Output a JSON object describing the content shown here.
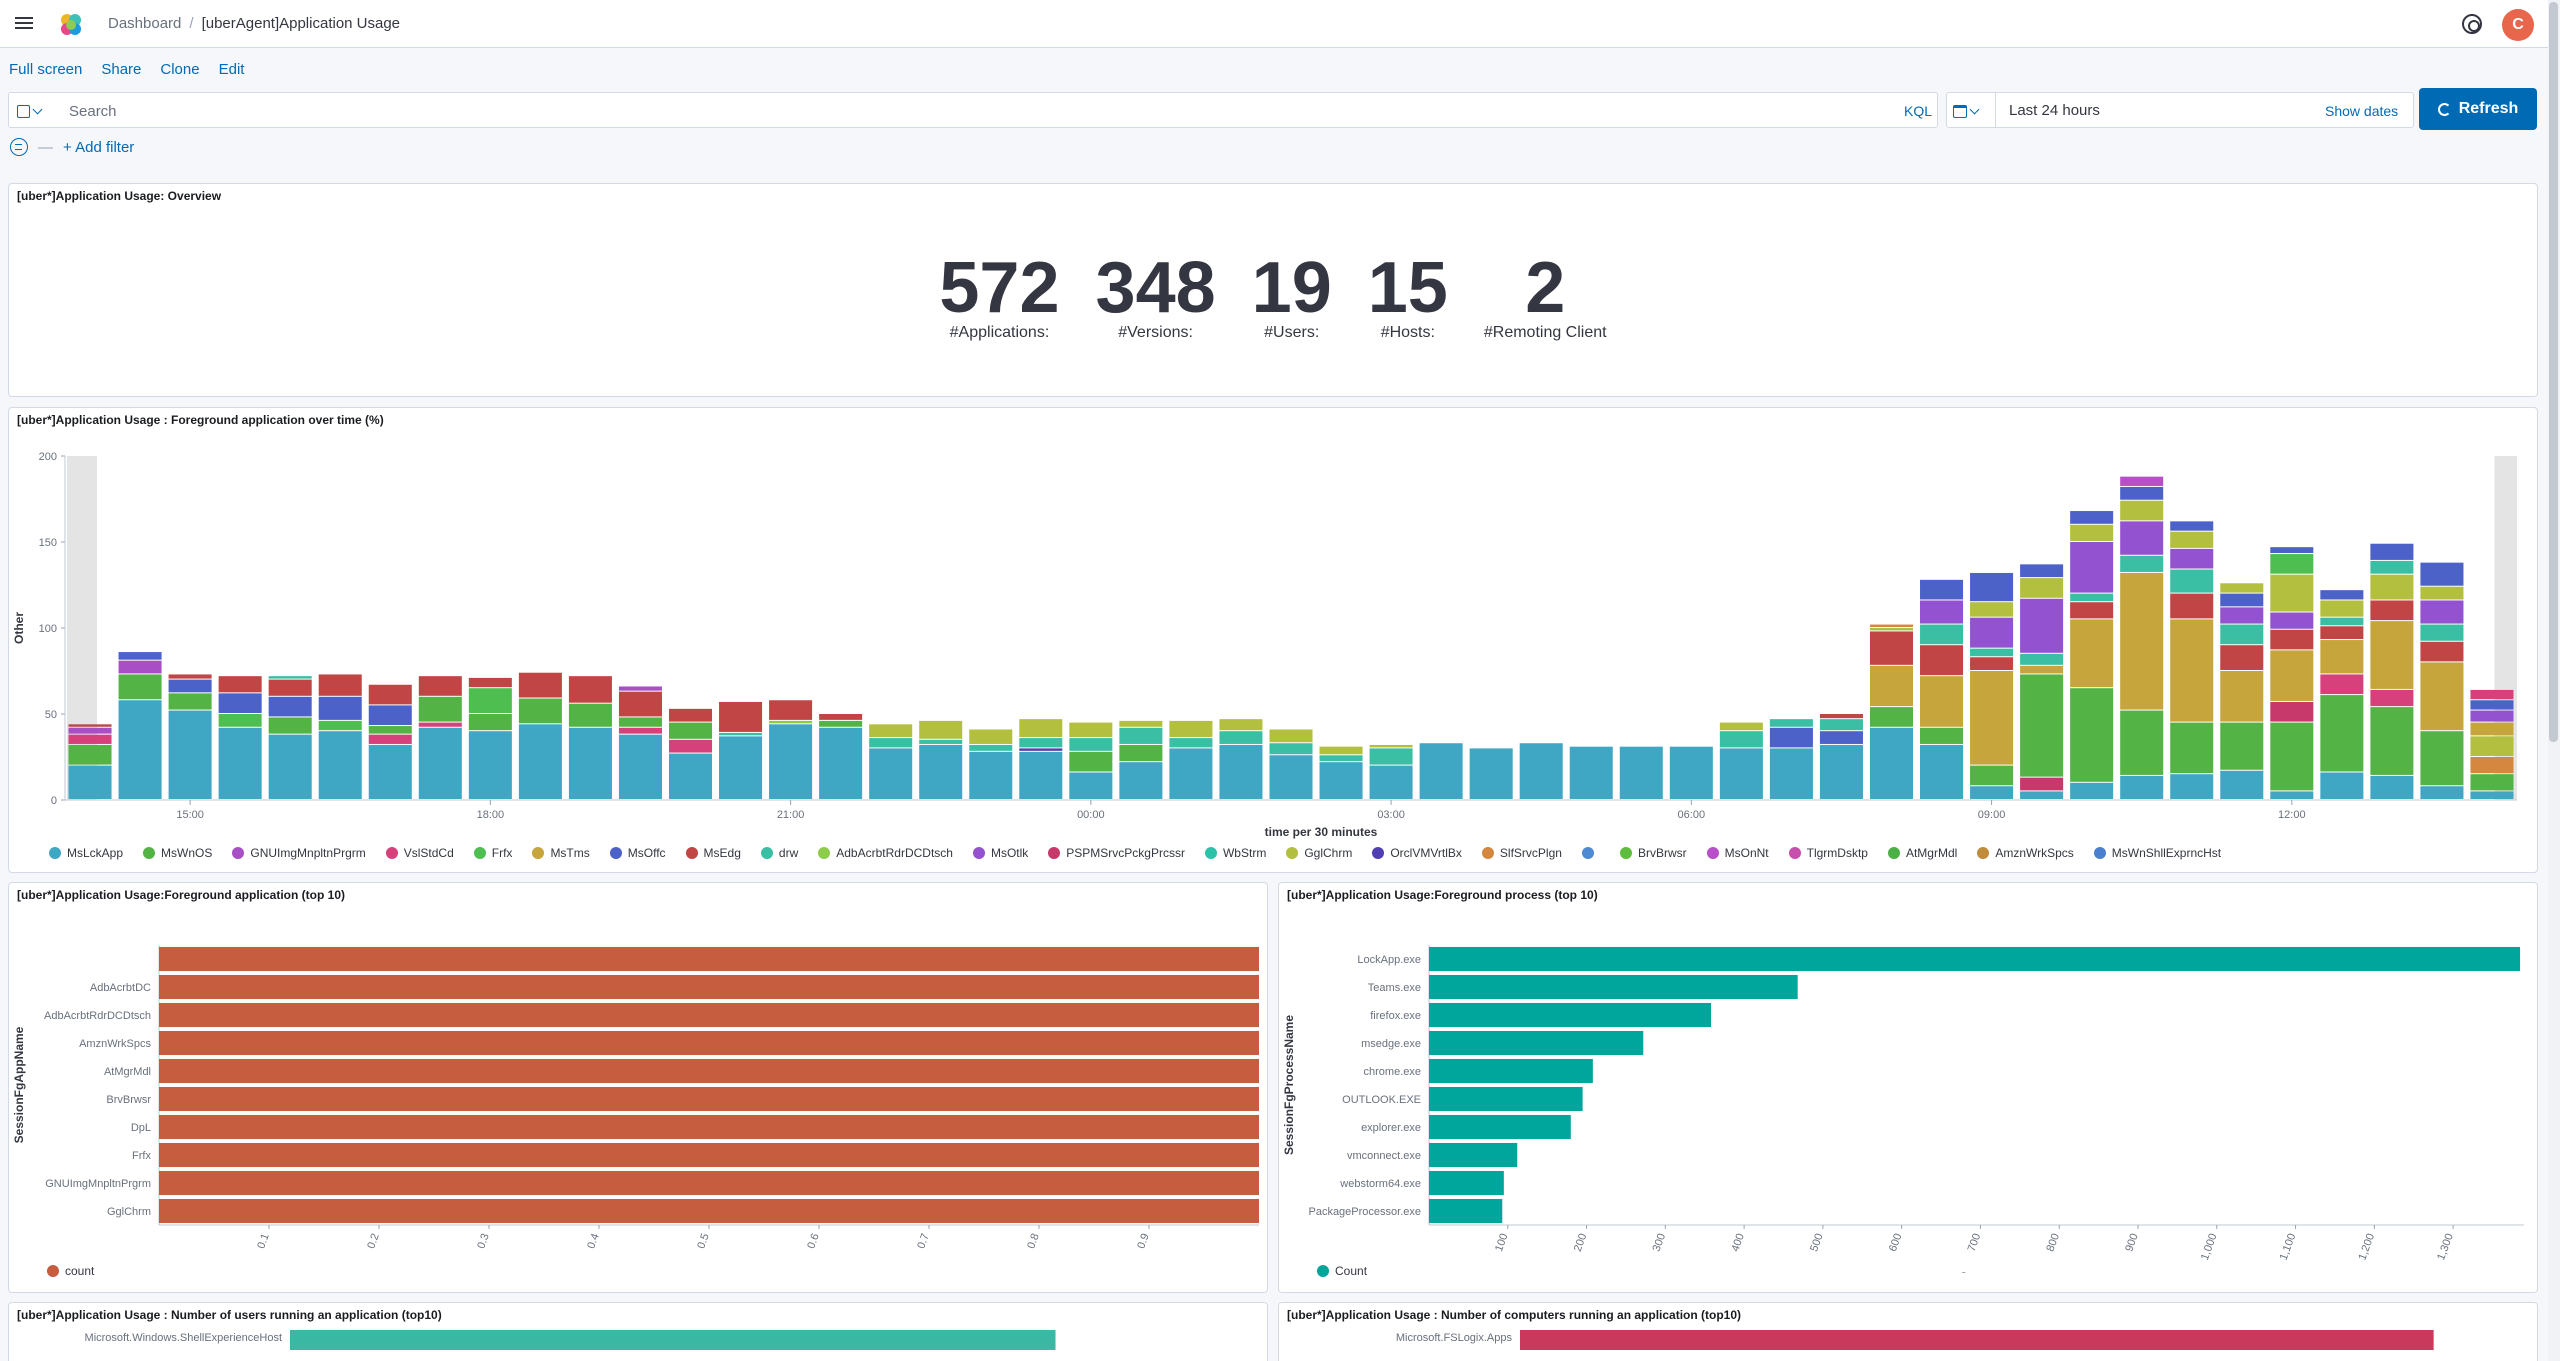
{
  "header": {
    "breadcrumb_root": "Dashboard",
    "breadcrumb_current": "[uberAgent]Application Usage",
    "avatar_initial": "C"
  },
  "actions": {
    "full_screen": "Full screen",
    "share": "Share",
    "clone": "Clone",
    "edit": "Edit"
  },
  "query": {
    "placeholder": "Search",
    "language": "KQL",
    "time_range": "Last 24 hours",
    "show_dates": "Show dates",
    "refresh": "Refresh"
  },
  "filters": {
    "add_filter": "+ Add filter"
  },
  "overview": {
    "title": "[uber*]Application Usage: Overview",
    "metrics": [
      {
        "value": "572",
        "label": "#Applications:"
      },
      {
        "value": "348",
        "label": "#Versions:"
      },
      {
        "value": "19",
        "label": "#Users:"
      },
      {
        "value": "15",
        "label": "#Hosts:"
      },
      {
        "value": "2",
        "label": "#Remoting Client"
      }
    ]
  },
  "colors": {
    "MsLckApp": "#3fa6c4",
    "MsWnOS": "#54b345",
    "GNUImgMnpltnPrgrm": "#a94fc5",
    "VslStdCd": "#d6417b",
    "Frfx": "#4fbe50",
    "MsTms": "#c5a53c",
    "MsOffc": "#4c62c9",
    "MsEdg": "#c24545",
    "drw": "#3bbfa4",
    "AdbAcrbtRdrDCDtsch": "#8ccc4a",
    "MsOtlk": "#9352d0",
    "PSPMSrvcPckgPrcssr": "#c6396a",
    "WbStrm": "#2cc1a9",
    "GglChrm": "#b3bf3f",
    "OrclVMVrtlBx": "#4f3fb3",
    "SlfSrvcPlgn": "#d58740",
    "Blank": "#4d8ad2",
    "BrvBrwsr": "#5ebd3c",
    "MsOnNt": "#b74fc8",
    "TlgrmDsktp": "#c94fae",
    "AtMgrMdl": "#4aaf44",
    "AmznWrkSpcs": "#c08b3a",
    "MsWnShllExprncHst": "#4a7fcf",
    "app_bar": "#c65d3f",
    "process_bar": "#00a69b",
    "users_bar": "#3bb8a4",
    "computers_bar": "#c9395b"
  },
  "chart_data": [
    {
      "type": "bar",
      "stacked": true,
      "title": "[uber*]Application Usage : Foreground application over time (%)",
      "xlabel": "time per 30 minutes",
      "ylabel": "Other",
      "ylim": [
        0,
        200
      ],
      "y_ticks": [
        0,
        50,
        100,
        150,
        200
      ],
      "x_tick_labels": [
        "15:00",
        "18:00",
        "21:00",
        "00:00",
        "03:00",
        "06:00",
        "09:00",
        "12:00"
      ],
      "x_tick_slots": [
        2,
        8,
        14,
        20,
        26,
        32,
        38,
        44
      ],
      "legend_position": "bottom",
      "legend": [
        "MsLckApp",
        "MsWnOS",
        "GNUImgMnpltnPrgrm",
        "VslStdCd",
        "Frfx",
        "MsTms",
        "MsOffc",
        "MsEdg",
        "drw",
        "AdbAcrbtRdrDCDtsch",
        "MsOtlk",
        "PSPMSrvcPckgPrcssr",
        "WbStrm",
        "GglChrm",
        "OrclVMVrtlBx",
        "SlfSrvcPlgn",
        "",
        "BrvBrwsr",
        "MsOnNt",
        "TlgrmDsktp",
        "AtMgrMdl",
        "AmznWrkSpcs",
        "MsWnShllExprncHst"
      ],
      "stacks": [
        [
          [
            "MsLckApp",
            20
          ],
          [
            "MsWnOS",
            12
          ],
          [
            "VslStdCd",
            6
          ],
          [
            "GNUImgMnpltnPrgrm",
            4
          ],
          [
            "MsEdg",
            2
          ]
        ],
        [
          [
            "MsLckApp",
            58
          ],
          [
            "MsWnOS",
            15
          ],
          [
            "GNUImgMnpltnPrgrm",
            8
          ],
          [
            "MsOffc",
            5
          ]
        ],
        [
          [
            "MsLckApp",
            52
          ],
          [
            "MsWnOS",
            10
          ],
          [
            "MsOffc",
            8
          ],
          [
            "MsEdg",
            3
          ]
        ],
        [
          [
            "MsLckApp",
            42
          ],
          [
            "Frfx",
            8
          ],
          [
            "MsOffc",
            12
          ],
          [
            "MsEdg",
            10
          ]
        ],
        [
          [
            "MsLckApp",
            38
          ],
          [
            "MsWnOS",
            10
          ],
          [
            "MsOffc",
            12
          ],
          [
            "MsEdg",
            10
          ],
          [
            "drw",
            2
          ]
        ],
        [
          [
            "MsLckApp",
            40
          ],
          [
            "Frfx",
            6
          ],
          [
            "MsOffc",
            14
          ],
          [
            "MsEdg",
            13
          ]
        ],
        [
          [
            "MsLckApp",
            32
          ],
          [
            "VslStdCd",
            6
          ],
          [
            "MsWnOS",
            5
          ],
          [
            "MsOffc",
            12
          ],
          [
            "MsEdg",
            12
          ]
        ],
        [
          [
            "MsLckApp",
            42
          ],
          [
            "VslStdCd",
            3
          ],
          [
            "MsWnOS",
            15
          ],
          [
            "MsEdg",
            12
          ]
        ],
        [
          [
            "MsLckApp",
            40
          ],
          [
            "MsWnOS",
            10
          ],
          [
            "Frfx",
            15
          ],
          [
            "MsEdg",
            6
          ]
        ],
        [
          [
            "MsLckApp",
            44
          ],
          [
            "MsWnOS",
            15
          ],
          [
            "MsEdg",
            15
          ]
        ],
        [
          [
            "MsLckApp",
            42
          ],
          [
            "MsWnOS",
            14
          ],
          [
            "MsEdg",
            16
          ]
        ],
        [
          [
            "MsLckApp",
            38
          ],
          [
            "VslStdCd",
            4
          ],
          [
            "MsWnOS",
            6
          ],
          [
            "MsEdg",
            15
          ],
          [
            "GNUImgMnpltnPrgrm",
            3
          ]
        ],
        [
          [
            "MsLckApp",
            27
          ],
          [
            "VslStdCd",
            8
          ],
          [
            "MsWnOS",
            10
          ],
          [
            "MsEdg",
            8
          ]
        ],
        [
          [
            "MsLckApp",
            37
          ],
          [
            "drw",
            2
          ],
          [
            "MsEdg",
            18
          ]
        ],
        [
          [
            "MsLckApp",
            44
          ],
          [
            "AdbAcrbtRdrDCDtsch",
            2
          ],
          [
            "MsEdg",
            12
          ]
        ],
        [
          [
            "MsLckApp",
            42
          ],
          [
            "MsWnOS",
            4
          ],
          [
            "MsEdg",
            4
          ]
        ],
        [
          [
            "MsLckApp",
            30
          ],
          [
            "drw",
            6
          ],
          [
            "GglChrm",
            8
          ]
        ],
        [
          [
            "MsLckApp",
            32
          ],
          [
            "drw",
            3
          ],
          [
            "GglChrm",
            11
          ]
        ],
        [
          [
            "MsLckApp",
            28
          ],
          [
            "drw",
            4
          ],
          [
            "GglChrm",
            9
          ]
        ],
        [
          [
            "MsLckApp",
            28
          ],
          [
            "OrclVMVrtlBx",
            2
          ],
          [
            "drw",
            6
          ],
          [
            "GglChrm",
            11
          ]
        ],
        [
          [
            "MsLckApp",
            16
          ],
          [
            "MsWnOS",
            12
          ],
          [
            "drw",
            8
          ],
          [
            "GglChrm",
            9
          ]
        ],
        [
          [
            "MsLckApp",
            22
          ],
          [
            "MsWnOS",
            10
          ],
          [
            "drw",
            10
          ],
          [
            "GglChrm",
            4
          ]
        ],
        [
          [
            "MsLckApp",
            30
          ],
          [
            "drw",
            6
          ],
          [
            "GglChrm",
            10
          ]
        ],
        [
          [
            "MsLckApp",
            32
          ],
          [
            "drw",
            8
          ],
          [
            "GglChrm",
            7
          ]
        ],
        [
          [
            "MsLckApp",
            26
          ],
          [
            "drw",
            7
          ],
          [
            "GglChrm",
            8
          ]
        ],
        [
          [
            "MsLckApp",
            22
          ],
          [
            "drw",
            4
          ],
          [
            "GglChrm",
            5
          ]
        ],
        [
          [
            "MsLckApp",
            20
          ],
          [
            "drw",
            10
          ],
          [
            "GglChrm",
            2
          ]
        ],
        [
          [
            "MsLckApp",
            33
          ]
        ],
        [
          [
            "MsLckApp",
            30
          ]
        ],
        [
          [
            "MsLckApp",
            33
          ]
        ],
        [
          [
            "MsLckApp",
            31
          ]
        ],
        [
          [
            "MsLckApp",
            31
          ]
        ],
        [
          [
            "MsLckApp",
            31
          ]
        ],
        [
          [
            "MsLckApp",
            30
          ],
          [
            "drw",
            10
          ],
          [
            "GglChrm",
            5
          ]
        ],
        [
          [
            "MsLckApp",
            30
          ],
          [
            "MsOffc",
            12
          ],
          [
            "drw",
            5
          ]
        ],
        [
          [
            "MsLckApp",
            32
          ],
          [
            "MsOffc",
            8
          ],
          [
            "drw",
            7
          ],
          [
            "MsEdg",
            3
          ]
        ],
        [
          [
            "MsLckApp",
            42
          ],
          [
            "MsWnOS",
            12
          ],
          [
            "MsTms",
            24
          ],
          [
            "MsEdg",
            20
          ],
          [
            "GglChrm",
            2
          ],
          [
            "SlfSrvcPlgn",
            2
          ]
        ],
        [
          [
            "MsLckApp",
            32
          ],
          [
            "MsWnOS",
            10
          ],
          [
            "MsTms",
            30
          ],
          [
            "MsEdg",
            18
          ],
          [
            "drw",
            12
          ],
          [
            "MsOtlk",
            14
          ],
          [
            "MsOffc",
            12
          ]
        ],
        [
          [
            "MsLckApp",
            8
          ],
          [
            "MsWnOS",
            12
          ],
          [
            "MsTms",
            55
          ],
          [
            "MsEdg",
            8
          ],
          [
            "drw",
            5
          ],
          [
            "MsOtlk",
            18
          ],
          [
            "GglChrm",
            9
          ],
          [
            "MsOffc",
            17
          ]
        ],
        [
          [
            "MsLckApp",
            5
          ],
          [
            "PSPMSrvcPckgPrcssr",
            8
          ],
          [
            "MsWnOS",
            60
          ],
          [
            "MsTms",
            5
          ],
          [
            "drw",
            7
          ],
          [
            "MsOtlk",
            32
          ],
          [
            "GglChrm",
            12
          ],
          [
            "MsOffc",
            8
          ]
        ],
        [
          [
            "MsLckApp",
            10
          ],
          [
            "MsWnOS",
            55
          ],
          [
            "MsTms",
            40
          ],
          [
            "MsEdg",
            10
          ],
          [
            "drw",
            5
          ],
          [
            "MsOtlk",
            30
          ],
          [
            "GglChrm",
            10
          ],
          [
            "MsOffc",
            8
          ]
        ],
        [
          [
            "MsLckApp",
            14
          ],
          [
            "MsWnOS",
            38
          ],
          [
            "MsTms",
            80
          ],
          [
            "drw",
            10
          ],
          [
            "MsOtlk",
            20
          ],
          [
            "GglChrm",
            12
          ],
          [
            "MsOffc",
            8
          ],
          [
            "MsOnNt",
            6
          ]
        ],
        [
          [
            "MsLckApp",
            15
          ],
          [
            "MsWnOS",
            30
          ],
          [
            "MsTms",
            60
          ],
          [
            "MsEdg",
            15
          ],
          [
            "drw",
            14
          ],
          [
            "MsOtlk",
            12
          ],
          [
            "GglChrm",
            10
          ],
          [
            "MsOffc",
            6
          ]
        ],
        [
          [
            "MsLckApp",
            17
          ],
          [
            "MsWnOS",
            28
          ],
          [
            "MsTms",
            30
          ],
          [
            "MsEdg",
            15
          ],
          [
            "drw",
            12
          ],
          [
            "MsOtlk",
            10
          ],
          [
            "MsOffc",
            8
          ],
          [
            "GglChrm",
            6
          ]
        ],
        [
          [
            "MsLckApp",
            5
          ],
          [
            "MsWnOS",
            40
          ],
          [
            "PSPMSrvcPckgPrcssr",
            12
          ],
          [
            "MsTms",
            30
          ],
          [
            "MsEdg",
            12
          ],
          [
            "MsOtlk",
            10
          ],
          [
            "GglChrm",
            22
          ],
          [
            "Frfx",
            12
          ],
          [
            "MsOffc",
            4
          ]
        ],
        [
          [
            "MsLckApp",
            16
          ],
          [
            "MsWnOS",
            45
          ],
          [
            "VslStdCd",
            12
          ],
          [
            "MsTms",
            20
          ],
          [
            "MsEdg",
            8
          ],
          [
            "drw",
            5
          ],
          [
            "GglChrm",
            10
          ],
          [
            "MsOffc",
            6
          ]
        ],
        [
          [
            "MsLckApp",
            14
          ],
          [
            "MsWnOS",
            40
          ],
          [
            "VslStdCd",
            10
          ],
          [
            "MsTms",
            40
          ],
          [
            "MsEdg",
            12
          ],
          [
            "GglChrm",
            15
          ],
          [
            "drw",
            8
          ],
          [
            "MsOffc",
            10
          ]
        ],
        [
          [
            "MsLckApp",
            8
          ],
          [
            "MsWnOS",
            32
          ],
          [
            "MsTms",
            40
          ],
          [
            "MsEdg",
            12
          ],
          [
            "drw",
            10
          ],
          [
            "MsOtlk",
            14
          ],
          [
            "GglChrm",
            8
          ],
          [
            "MsOffc",
            14
          ]
        ],
        [
          [
            "MsLckApp",
            5
          ],
          [
            "MsWnOS",
            10
          ],
          [
            "SlfSrvcPlgn",
            10
          ],
          [
            "GglChrm",
            12
          ],
          [
            "MsTms",
            8
          ],
          [
            "MsOtlk",
            7
          ],
          [
            "MsOffc",
            6
          ],
          [
            "VslStdCd",
            6
          ]
        ]
      ]
    },
    {
      "type": "bar",
      "orientation": "horizontal",
      "title": "[uber*]Application Usage:Foreground application (top 10)",
      "xlabel": "count",
      "ylabel": "SessionFgAppName",
      "xlim": [
        0,
        1
      ],
      "x_ticks": [
        0.1,
        0.2,
        0.3,
        0.4,
        0.5,
        0.6,
        0.7,
        0.8,
        0.9
      ],
      "categories": [
        "",
        "AdbAcrbtDC",
        "AdbAcrbtRdrDCDtsch",
        "AmznWrkSpcs",
        "AtMgrMdl",
        "BrvBrwsr",
        "DpL",
        "Frfx",
        "GNUImgMnpltnPrgrm",
        "GglChrm"
      ],
      "values": [
        1,
        1,
        1,
        1,
        1,
        1,
        1,
        1,
        1,
        1
      ],
      "legend": [
        "count"
      ]
    },
    {
      "type": "bar",
      "orientation": "horizontal",
      "title": "[uber*]Application Usage:Foreground process (top 10)",
      "xlabel": "Count",
      "ylabel": "SessionFgProcessName",
      "xlim": [
        0,
        1390
      ],
      "x_ticks": [
        100,
        200,
        300,
        400,
        500,
        600,
        700,
        800,
        900,
        "1,000",
        "1,100",
        "1,200",
        "1,300"
      ],
      "categories": [
        "LockApp.exe",
        "Teams.exe",
        "firefox.exe",
        "msedge.exe",
        "chrome.exe",
        "OUTLOOK.EXE",
        "explorer.exe",
        "vmconnect.exe",
        "webstorm64.exe",
        "PackageProcessor.exe"
      ],
      "values": [
        1385,
        468,
        358,
        272,
        208,
        195,
        180,
        112,
        95,
        93
      ],
      "legend": [
        "Count"
      ]
    },
    {
      "type": "bar",
      "orientation": "horizontal",
      "title": "[uber*]Application Usage : Number of users running an application (top10)",
      "categories": [
        "Microsoft.Windows.ShellExperienceHost"
      ],
      "values": [
        0.79
      ]
    },
    {
      "type": "bar",
      "orientation": "horizontal",
      "title": "[uber*]Application Usage : Number of computers running an application (top10)",
      "categories": [
        "Microsoft.FSLogix.Apps"
      ],
      "values": [
        0.91
      ]
    }
  ]
}
